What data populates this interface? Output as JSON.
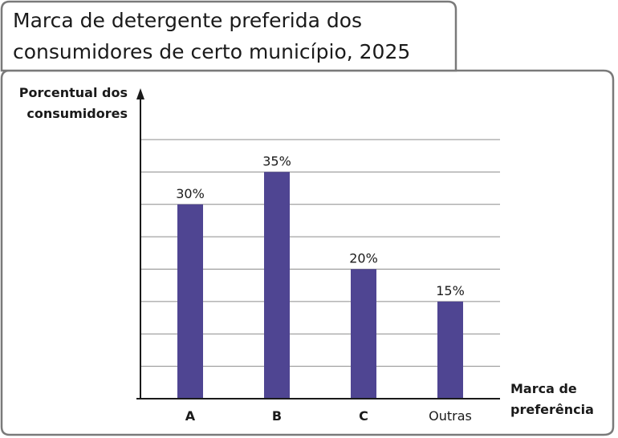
{
  "title_lines": [
    "Marca de detergente preferida dos",
    "consumidores de certo município, 2025"
  ],
  "chart_data": {
    "type": "bar",
    "title": "Marca de detergente preferida dos consumidores de certo município, 2025",
    "categories": [
      "A",
      "B",
      "C",
      "Outras"
    ],
    "category_bold": [
      true,
      true,
      true,
      false
    ],
    "values": [
      30,
      35,
      20,
      15
    ],
    "value_labels": [
      "30%",
      "35%",
      "20%",
      "15%"
    ],
    "ylabel_lines": [
      "Porcentual dos",
      "consumidores"
    ],
    "xlabel_lines": [
      "Marca de",
      "preferência"
    ],
    "ylim": [
      0,
      40
    ],
    "grid_step": 5,
    "grid": true,
    "bar_color": "#4f4592"
  },
  "colors": {
    "frame": "#7a7a7a",
    "grid": "#8c8c8c",
    "axis": "#1a1a1a",
    "text": "#1a1a1a"
  }
}
